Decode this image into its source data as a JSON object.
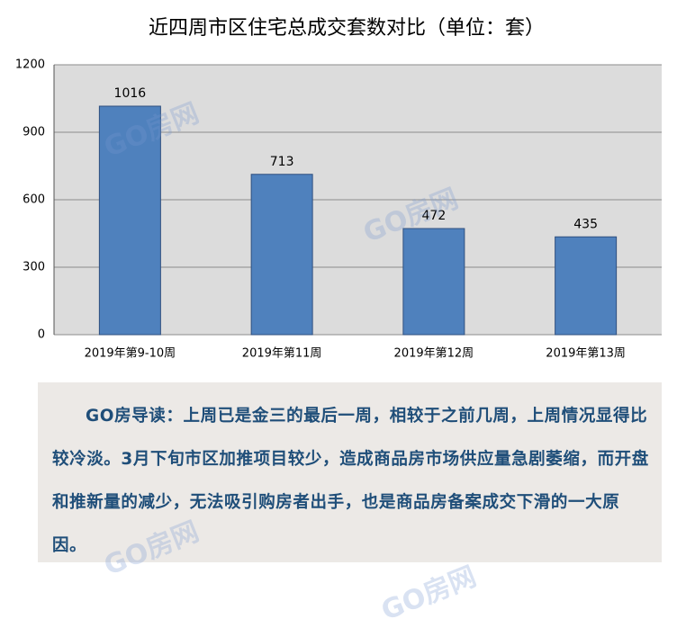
{
  "chart_data": {
    "type": "bar",
    "title": "近四周市区住宅总成交套数对比（单位：套）",
    "categories": [
      "2019年第9-10周",
      "2019年第11周",
      "2019年第12周",
      "2019年第13周"
    ],
    "values": [
      1016,
      713,
      472,
      435
    ],
    "color": "#4f81bd",
    "ylim": [
      0,
      1200
    ],
    "yticks": [
      0,
      300,
      600,
      900,
      1200
    ],
    "grid": true
  },
  "note": {
    "text": "GO房导读：上周已是金三的最后一周，相较于之前几周，上周情况显得比较冷淡。3月下旬市区加推项目较少，造成商品房市场供应量急剧萎缩，而开盘和推新量的减少，无法吸引购房者出手，也是商品房备案成交下滑的一大原因。"
  },
  "watermark": "GO房网"
}
